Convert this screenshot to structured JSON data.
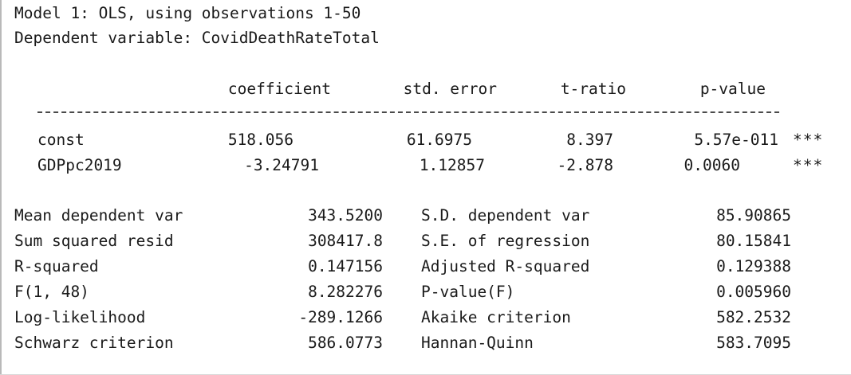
{
  "header": {
    "model_line": "Model 1: OLS, using observations 1-50",
    "dependent_line": "Dependent variable: CovidDeathRateTotal"
  },
  "coef_table": {
    "columns": [
      "coefficient",
      "std. error",
      "t-ratio",
      "p-value"
    ],
    "rows": [
      {
        "name": "const",
        "coefficient": "518.056",
        "std_error": "61.6975",
        "t_ratio": "8.397",
        "p_value": "5.57e-011",
        "stars": "***"
      },
      {
        "name": "GDPpc2019",
        "coefficient": "-3.24791",
        "std_error": "1.12857",
        "t_ratio": "-2.878",
        "p_value": "0.0060",
        "stars": "***"
      }
    ]
  },
  "stats": [
    {
      "label1": "Mean dependent var",
      "value1": "343.5200",
      "label2": "S.D. dependent var",
      "value2": "85.90865"
    },
    {
      "label1": "Sum squared resid",
      "value1": "308417.8",
      "label2": "S.E. of regression",
      "value2": "80.15841"
    },
    {
      "label1": "R-squared",
      "value1": "0.147156",
      "label2": "Adjusted R-squared",
      "value2": "0.129388"
    },
    {
      "label1": "F(1, 48)",
      "value1": "8.282276",
      "label2": "P-value(F)",
      "value2": "0.005960"
    },
    {
      "label1": "Log-likelihood",
      "value1": "-289.1266",
      "label2": "Akaike criterion",
      "value2": "582.2532"
    },
    {
      "label1": "Schwarz criterion",
      "value1": "586.0773",
      "label2": "Hannan-Quinn",
      "value2": "583.7095"
    }
  ]
}
